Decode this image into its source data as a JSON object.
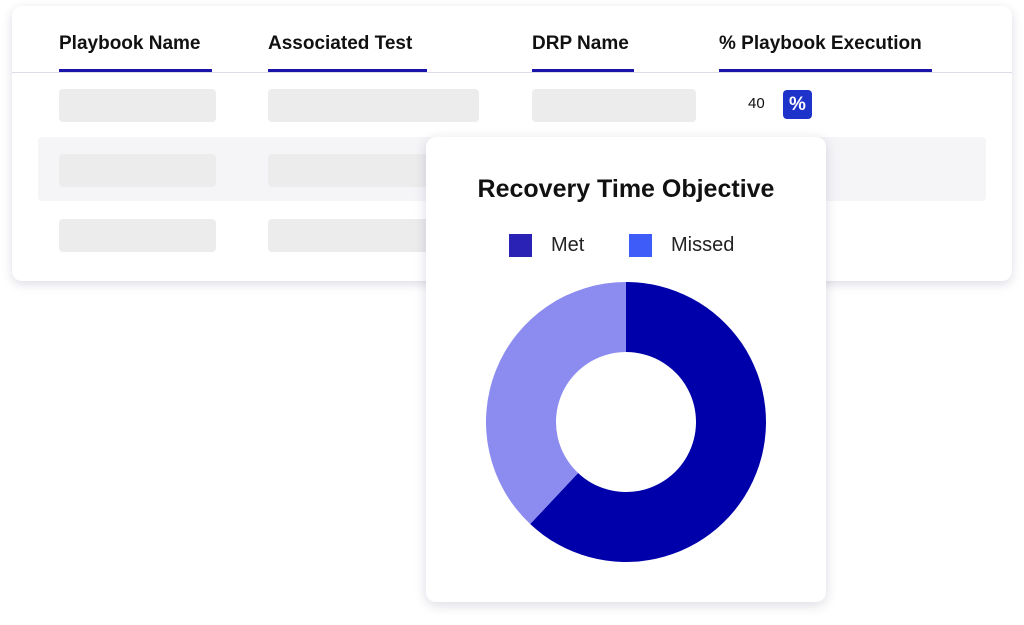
{
  "table": {
    "columns": [
      "Playbook Name",
      "Associated Test",
      "DRP Name",
      "% Playbook Execution"
    ],
    "rows": [
      {
        "execution_value": "40",
        "has_percent_badge": true
      },
      {
        "execution_value": "",
        "has_percent_badge": false
      },
      {
        "execution_value": "",
        "has_percent_badge": false
      }
    ],
    "percent_badge_icon": "percent-icon",
    "percent_badge_glyph": "%"
  },
  "chart_data": {
    "type": "pie",
    "title": "Recovery Time Objective",
    "series": [
      {
        "name": "Met",
        "value": 62,
        "color": "#0000aa",
        "legend_color": "#2a21b5"
      },
      {
        "name": "Missed",
        "value": 38,
        "color": "#8c8cf0",
        "legend_color": "#3d5cf8"
      }
    ],
    "donut": true,
    "legend_position": "top"
  },
  "colors": {
    "accent": "#1a14a8",
    "badge": "#1e33c9"
  }
}
